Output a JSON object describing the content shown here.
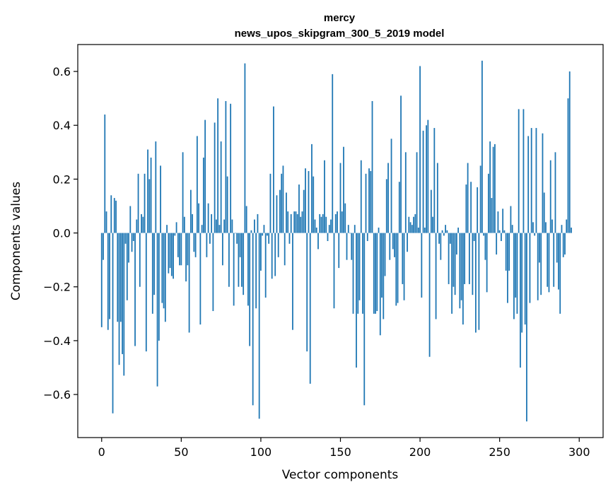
{
  "chart_data": {
    "type": "bar",
    "title": "mercy",
    "subtitle": "news_upos_skipgram_300_5_2019 model",
    "xlabel": "Vector components",
    "ylabel": "Components values",
    "xlim": [
      -15,
      315
    ],
    "ylim": [
      -0.76,
      0.7
    ],
    "xticks": [
      0,
      50,
      100,
      150,
      200,
      250,
      300
    ],
    "xtick_labels": [
      "0",
      "50",
      "100",
      "150",
      "200",
      "250",
      "300"
    ],
    "yticks": [
      -0.6,
      -0.4,
      -0.2,
      0.0,
      0.2,
      0.4,
      0.6
    ],
    "ytick_labels": [
      "−0.6",
      "−0.4",
      "−0.2",
      "0.0",
      "0.2",
      "0.4",
      "0.6"
    ],
    "bar_color": "#1f77b4",
    "grid": false,
    "values": [
      -0.35,
      -0.1,
      0.44,
      0.08,
      -0.36,
      -0.32,
      0.14,
      -0.67,
      0.13,
      0.12,
      -0.33,
      -0.49,
      -0.33,
      -0.45,
      -0.53,
      -0.04,
      -0.25,
      -0.11,
      0.1,
      -0.07,
      -0.03,
      -0.42,
      0.05,
      0.22,
      -0.2,
      0.07,
      0.06,
      0.22,
      -0.44,
      0.31,
      0.2,
      0.28,
      -0.3,
      -0.23,
      0.34,
      -0.57,
      -0.4,
      0.25,
      -0.26,
      -0.28,
      -0.33,
      0.03,
      -0.15,
      -0.13,
      -0.16,
      -0.17,
      -0.01,
      0.04,
      -0.09,
      -0.12,
      -0.12,
      0.3,
      0.06,
      -0.18,
      -0.12,
      -0.37,
      0.16,
      0.07,
      -0.07,
      -0.09,
      0.36,
      0.11,
      -0.34,
      0.03,
      0.28,
      0.42,
      -0.09,
      0.11,
      -0.04,
      0.07,
      -0.29,
      0.41,
      0.05,
      0.5,
      0.03,
      0.34,
      -0.12,
      0.05,
      0.49,
      0.21,
      -0.2,
      0.48,
      0.05,
      -0.27,
      0.0,
      -0.04,
      -0.2,
      -0.09,
      -0.2,
      -0.23,
      0.63,
      0.1,
      -0.27,
      -0.42,
      0.01,
      -0.64,
      0.05,
      -0.28,
      0.07,
      -0.69,
      -0.14,
      -0.01,
      0.03,
      -0.24,
      -0.01,
      -0.04,
      0.22,
      -0.17,
      0.47,
      -0.16,
      0.14,
      -0.09,
      0.16,
      0.22,
      0.25,
      -0.12,
      0.15,
      0.08,
      -0.04,
      0.07,
      -0.36,
      0.08,
      0.08,
      0.07,
      0.18,
      0.06,
      0.08,
      0.16,
      0.24,
      -0.44,
      0.23,
      -0.56,
      0.33,
      0.21,
      0.05,
      0.02,
      -0.06,
      0.07,
      0.06,
      0.07,
      0.27,
      0.06,
      -0.03,
      0.03,
      0.05,
      0.59,
      -0.28,
      0.07,
      0.08,
      -0.13,
      0.26,
      0.08,
      0.32,
      0.11,
      -0.1,
      0.03,
      0.0,
      -0.1,
      -0.3,
      0.03,
      -0.5,
      -0.3,
      -0.25,
      0.27,
      -0.3,
      -0.64,
      0.22,
      -0.03,
      0.24,
      0.23,
      0.49,
      -0.3,
      -0.3,
      -0.29,
      0.02,
      -0.38,
      -0.24,
      -0.32,
      -0.16,
      0.2,
      0.26,
      -0.1,
      0.35,
      -0.06,
      -0.09,
      -0.27,
      -0.26,
      0.19,
      0.51,
      -0.19,
      -0.25,
      0.3,
      -0.07,
      0.06,
      0.04,
      0.03,
      0.06,
      0.07,
      0.3,
      0.02,
      0.62,
      -0.24,
      0.38,
      0.02,
      0.4,
      0.42,
      -0.46,
      0.16,
      0.06,
      0.39,
      -0.32,
      0.26,
      -0.04,
      -0.1,
      0.01,
      -0.01,
      0.03,
      0.01,
      -0.19,
      -0.04,
      -0.3,
      -0.2,
      -0.23,
      -0.08,
      0.02,
      -0.28,
      -0.25,
      -0.34,
      -0.19,
      0.18,
      0.26,
      -0.19,
      0.19,
      -0.23,
      -0.03,
      -0.37,
      0.17,
      -0.36,
      0.25,
      0.64,
      -0.01,
      -0.1,
      -0.22,
      0.22,
      0.34,
      0.13,
      0.32,
      0.33,
      -0.08,
      0.08,
      0.01,
      -0.03,
      0.09,
      0.01,
      -0.14,
      -0.26,
      -0.14,
      0.1,
      0.03,
      -0.32,
      -0.24,
      -0.3,
      0.46,
      -0.5,
      -0.37,
      0.46,
      -0.34,
      -0.7,
      0.36,
      -0.26,
      0.39,
      0.04,
      -0.01,
      0.39,
      -0.25,
      -0.11,
      -0.23,
      0.37,
      0.15,
      0.04,
      -0.2,
      -0.22,
      0.27,
      0.05,
      -0.2,
      0.3,
      -0.11,
      -0.21,
      -0.3,
      0.03,
      -0.09,
      -0.08,
      0.05,
      0.5,
      0.6,
      0.02
    ]
  }
}
